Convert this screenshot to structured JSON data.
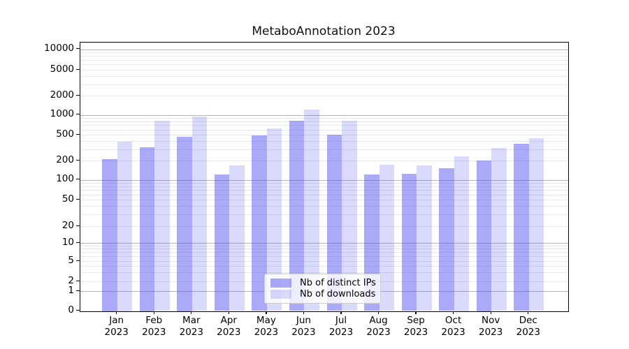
{
  "chart_data": {
    "type": "bar",
    "title": "MetaboAnnotation 2023",
    "year": "2023",
    "months": [
      "Jan",
      "Feb",
      "Mar",
      "Apr",
      "May",
      "Jun",
      "Jul",
      "Aug",
      "Sep",
      "Oct",
      "Nov",
      "Dec"
    ],
    "series": [
      {
        "name": "Nb of distinct IPs",
        "color": "#4646f0",
        "alpha": 0.46,
        "rendered_color": "#aaaaf8",
        "values": [
          210,
          320,
          470,
          120,
          490,
          820,
          505,
          120,
          125,
          150,
          200,
          360
        ]
      },
      {
        "name": "Nb of downloads",
        "color": "#4646f0",
        "alpha": 0.2,
        "rendered_color": "#dadaf9",
        "values": [
          390,
          810,
          950,
          168,
          620,
          1200,
          820,
          170,
          166,
          235,
          315,
          440
        ]
      }
    ],
    "y_ticks": [
      0,
      1,
      2,
      5,
      10,
      20,
      50,
      100,
      200,
      500,
      1000,
      2000,
      5000,
      10000
    ],
    "y_scale": "symlog",
    "ylim": [
      0,
      10000
    ],
    "grid": true,
    "legend_position": "lower center"
  },
  "colors": {
    "grid_major": "#b4b4b4",
    "grid_minor": "#e7e7e7",
    "spine": "#000000",
    "text": "#000000"
  }
}
